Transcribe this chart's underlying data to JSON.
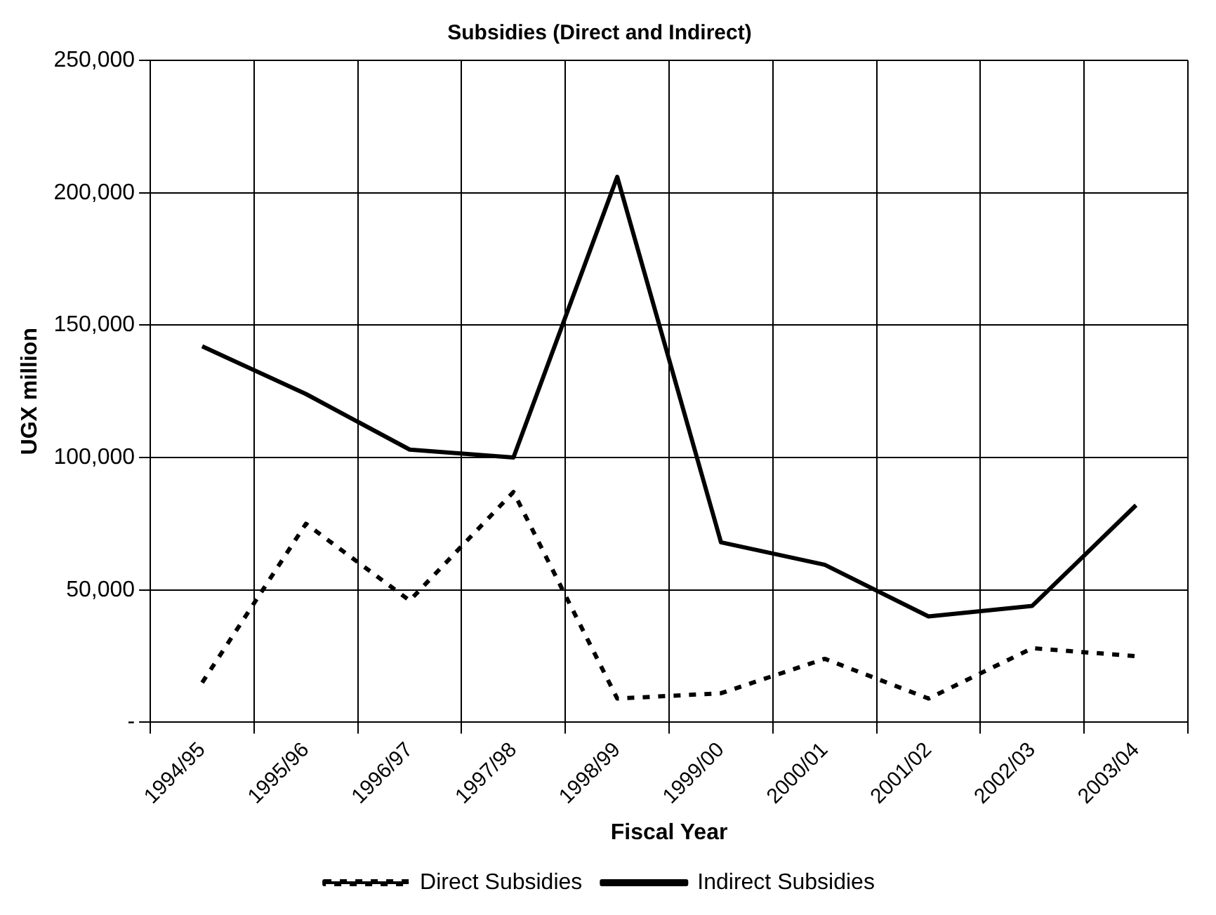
{
  "chart_data": {
    "type": "line",
    "title": "Subsidies (Direct and Indirect)",
    "xlabel": "Fiscal Year",
    "ylabel": "UGX million",
    "categories": [
      "1994/95",
      "1995/96",
      "1996/97",
      "1997/98",
      "1998/99",
      "1999/00",
      "2000/01",
      "2001/02",
      "2002/03",
      "2003/04"
    ],
    "series": [
      {
        "name": "Direct Subsidies",
        "color": "#000000",
        "line_style": "dotted",
        "values": [
          15000,
          75000,
          46000,
          87000,
          9000,
          11000,
          24000,
          9000,
          28000,
          25000
        ]
      },
      {
        "name": "Indirect Subsidies",
        "color": "#000000",
        "line_style": "solid",
        "values": [
          142000,
          124000,
          103000,
          100000,
          206000,
          68000,
          59500,
          40000,
          44000,
          82000
        ]
      }
    ],
    "ylim": [
      0,
      250000
    ],
    "yticks": [
      {
        "value": 0,
        "label": "-"
      },
      {
        "value": 50000,
        "label": "50,000"
      },
      {
        "value": 100000,
        "label": "100,000"
      },
      {
        "value": 150000,
        "label": "150,000"
      },
      {
        "value": 200000,
        "label": "200,000"
      },
      {
        "value": 250000,
        "label": "250,000"
      }
    ],
    "grid": true,
    "legend": "bottom",
    "marker": "none"
  }
}
